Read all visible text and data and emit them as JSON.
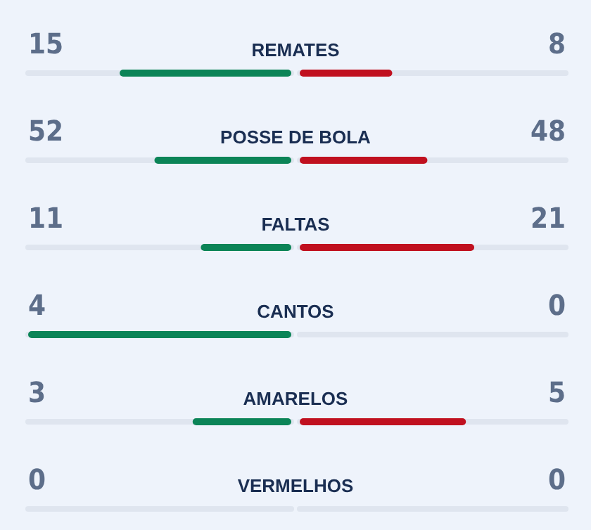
{
  "chart_data": {
    "type": "other",
    "categories": [
      "REMATES",
      "POSSE DE BOLA",
      "FALTAS",
      "CANTOS",
      "AMARELOS",
      "VERMELHOS"
    ],
    "series": [
      {
        "color": "#0b8457",
        "values": [
          15,
          52,
          11,
          4,
          3,
          0
        ]
      },
      {
        "color": "#c0101f",
        "values": [
          8,
          48,
          21,
          0,
          5,
          0
        ]
      }
    ],
    "data_labels": true
  }
}
